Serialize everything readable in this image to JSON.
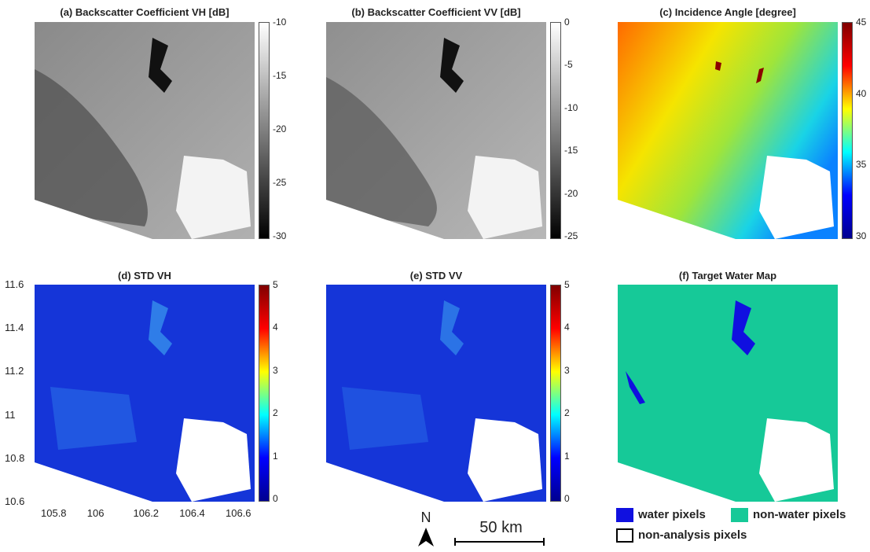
{
  "panels": {
    "a": {
      "title": "(a) Backscatter Coefficient VH [dB]",
      "cbar_ticks": [
        "-10",
        "-15",
        "-20",
        "-25",
        "-30"
      ],
      "cbar_values": [
        -10,
        -15,
        -20,
        -25,
        -30
      ],
      "cbar_range": [
        -30,
        -10
      ]
    },
    "b": {
      "title": "(b) Backscatter Coefficient VV [dB]",
      "cbar_ticks": [
        "0",
        "-5",
        "-10",
        "-15",
        "-20",
        "-25"
      ],
      "cbar_values": [
        0,
        -5,
        -10,
        -15,
        -20,
        -25
      ],
      "cbar_range": [
        -25,
        0
      ]
    },
    "c": {
      "title": "(c) Incidence Angle [degree]",
      "cbar_ticks": [
        "45",
        "40",
        "35",
        "30"
      ],
      "cbar_values": [
        45,
        40,
        35,
        30
      ],
      "cbar_range": [
        30,
        45
      ]
    },
    "d": {
      "title": "(d) STD VH",
      "cbar_ticks": [
        "5",
        "4",
        "3",
        "2",
        "1",
        "0"
      ],
      "cbar_values": [
        5,
        4,
        3,
        2,
        1,
        0
      ],
      "cbar_range": [
        0,
        5
      ]
    },
    "e": {
      "title": "(e) STD VV",
      "cbar_ticks": [
        "5",
        "4",
        "3",
        "2",
        "1",
        "0"
      ],
      "cbar_values": [
        5,
        4,
        3,
        2,
        1,
        0
      ],
      "cbar_range": [
        0,
        5
      ]
    },
    "f": {
      "title": "(f) Target Water Map"
    }
  },
  "axes": {
    "y_ticks": [
      "11.6",
      "11.4",
      "11.2",
      "11",
      "10.8",
      "10.6"
    ],
    "x_ticks": [
      "105.8",
      "106",
      "106.2",
      "106.4",
      "106.6"
    ]
  },
  "scale_bar": {
    "north_label": "N",
    "distance_label": "50 km"
  },
  "legend": {
    "water": "water pixels",
    "non_water": "non-water pixels",
    "non_analysis": "non-analysis pixels"
  },
  "colors": {
    "water": "#1010e0",
    "non_water": "#16c998",
    "no_data": "#ffffff"
  },
  "colormaps": {
    "gray": "gray",
    "jet": "jet"
  }
}
